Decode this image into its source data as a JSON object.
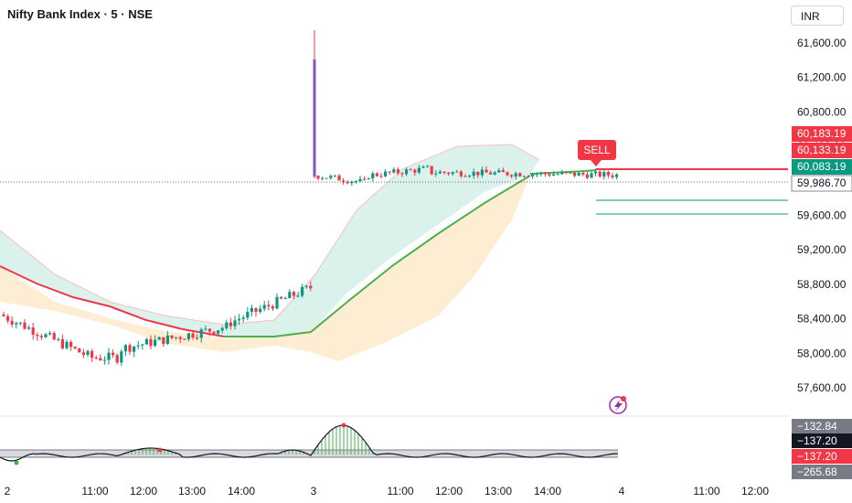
{
  "header": {
    "symbol_title": "Nifty Bank Index · 5 · NSE",
    "currency": "INR"
  },
  "signal": {
    "label": "SELL",
    "color": "#f23645"
  },
  "colors": {
    "up": "#089981",
    "down": "#f23645",
    "ma_fast": "#4caf50",
    "ma_slow": "#f23645",
    "cloud_green": "#cfeee6",
    "cloud_orange": "#fde8c8",
    "osc_green": "#4caf50"
  },
  "chart_data": [
    {
      "type": "candlestick",
      "ylim": [
        57300,
        61900
      ],
      "y_ticks": [
        "61,600.00",
        "61,200.00",
        "60,800.00",
        "60,400.00",
        "60,000.00",
        "59,600.00",
        "59,200.00",
        "58,800.00",
        "58,400.00",
        "58,000.00",
        "57,600.00"
      ],
      "y_tick_values": [
        61600,
        61200,
        60800,
        60400,
        60000,
        59600,
        59200,
        58800,
        58400,
        58000,
        57600
      ],
      "x_ticks": [
        "2",
        "11:00",
        "12:00",
        "13:00",
        "14:00",
        "3",
        "11:00",
        "12:00",
        "13:00",
        "14:00",
        "4",
        "11:00",
        "12:00"
      ],
      "price_tags": [
        {
          "text": "60,183.19",
          "value": 60183.19,
          "bg": "#f23645",
          "fg": "#ffffff"
        },
        {
          "text": "60,133.19",
          "value": 60133.19,
          "bg": "#f23645",
          "fg": "#ffffff"
        },
        {
          "text": "60,083.19",
          "value": 60083.19,
          "bg": "#089981",
          "fg": "#ffffff"
        },
        {
          "text": "59,986.70",
          "value": 59986.7,
          "bg": "#ffffff",
          "fg": "#131722"
        }
      ],
      "last_price": 59986.7,
      "sell_level": 60083.19,
      "targets": [
        59780,
        59640
      ]
    },
    {
      "type": "line",
      "name": "oscillator",
      "tags": [
        {
          "text": "−132.84",
          "bg": "#787b86",
          "fg": "#ffffff"
        },
        {
          "text": "−137.20",
          "bg": "#131722",
          "fg": "#ffffff"
        },
        {
          "text": "−137.20",
          "bg": "#f23645",
          "fg": "#ffffff"
        },
        {
          "text": "−265.68",
          "bg": "#787b86",
          "fg": "#ffffff"
        }
      ]
    }
  ]
}
